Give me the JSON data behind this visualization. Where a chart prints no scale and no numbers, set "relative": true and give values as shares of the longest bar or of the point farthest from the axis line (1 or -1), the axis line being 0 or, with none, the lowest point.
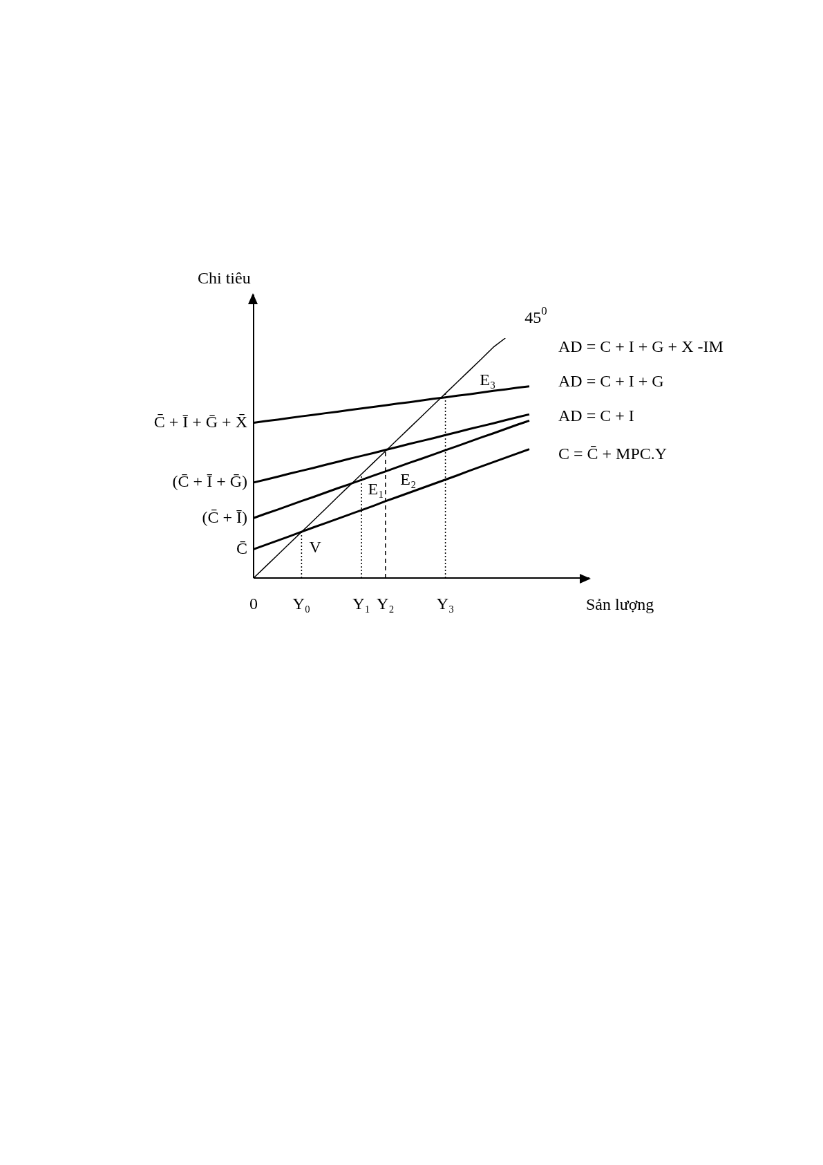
{
  "chart_data": {
    "type": "line",
    "relative": true,
    "xlabel": "Sản lượng",
    "ylabel": "Chi tiêu",
    "categories": [
      "0",
      null,
      null,
      null,
      "Y₀",
      null,
      null,
      null,
      null,
      "Y₁",
      null,
      "Y₂",
      null,
      null,
      null,
      null,
      "Y₃",
      null,
      null,
      null,
      null,
      null,
      null,
      null
    ],
    "series": [
      {
        "name": "AD = C + I + G + X -IM",
        "color": "#000000",
        "values": [
          0.647,
          0.654,
          0.66,
          0.667,
          0.674,
          0.68,
          0.687,
          0.693,
          0.7,
          0.707,
          0.713,
          0.72,
          0.727,
          0.733,
          0.74,
          0.747,
          0.753,
          0.76,
          0.766,
          0.773,
          0.78,
          0.786,
          0.793,
          0.799
        ]
      },
      {
        "name": "AD = C + I + G",
        "color": "#000000",
        "values": [
          0.398,
          0.41,
          0.422,
          0.435,
          0.447,
          0.459,
          0.472,
          0.484,
          0.497,
          0.509,
          0.521,
          0.534,
          0.546,
          0.559,
          0.571,
          0.583,
          0.596,
          0.608,
          0.621,
          0.633,
          0.645,
          0.658,
          0.67,
          0.682
        ]
      },
      {
        "name": "AD = C + I",
        "color": "#000000",
        "values": [
          0.25,
          0.268,
          0.285,
          0.303,
          0.321,
          0.338,
          0.356,
          0.374,
          0.391,
          0.409,
          0.427,
          0.444,
          0.462,
          0.48,
          0.497,
          0.515,
          0.533,
          0.55,
          0.568,
          0.586,
          0.603,
          0.621,
          0.639,
          0.656
        ]
      },
      {
        "name": "C = C̄ + MPC.Y",
        "color": "#000000",
        "values": [
          0.12,
          0.138,
          0.156,
          0.174,
          0.193,
          0.211,
          0.229,
          0.247,
          0.265,
          0.283,
          0.301,
          0.32,
          0.338,
          0.356,
          0.374,
          0.392,
          0.41,
          0.428,
          0.447,
          0.465,
          0.483,
          0.501,
          0.519,
          0.537
        ]
      },
      {
        "color": "#000000",
        "values": [
          0,
          0.048,
          0.096,
          0.144,
          0.192,
          0.24,
          0.288,
          0.337,
          0.385,
          0.433,
          0.481,
          0.529,
          0.577,
          0.625,
          0.673,
          0.721,
          0.769,
          0.817,
          0.865,
          0.913,
          0.962,
          1,
          null,
          null
        ]
      }
    ],
    "ref_lines": [
      {
        "axis": "x",
        "value": "Y₀",
        "color": "#000000",
        "line_style": "dotted"
      },
      {
        "axis": "x",
        "value": "Y₁",
        "color": "#000000",
        "line_style": "dotted"
      },
      {
        "axis": "x",
        "value": "Y₂",
        "color": "#000000",
        "line_style": "dashed"
      },
      {
        "axis": "x",
        "value": "Y₃",
        "color": "#000000",
        "line_style": "dotted"
      }
    ],
    "annotations": [
      {
        "text": "V",
        "x": "Y₀",
        "y": 0.19
      },
      {
        "text": "E₁",
        "x": "Y₁",
        "y": 0.42
      },
      {
        "text": "E₂",
        "x": "Y₂",
        "y": 0.53
      },
      {
        "text": "E₃",
        "x": "Y₃",
        "y": 0.76
      },
      "45$^{0}$",
      "C̄ + Ī + Ḡ + X̄",
      "(C̄ + Ī + Ḡ)",
      "(C̄ + Ī)",
      "C̄"
    ]
  }
}
